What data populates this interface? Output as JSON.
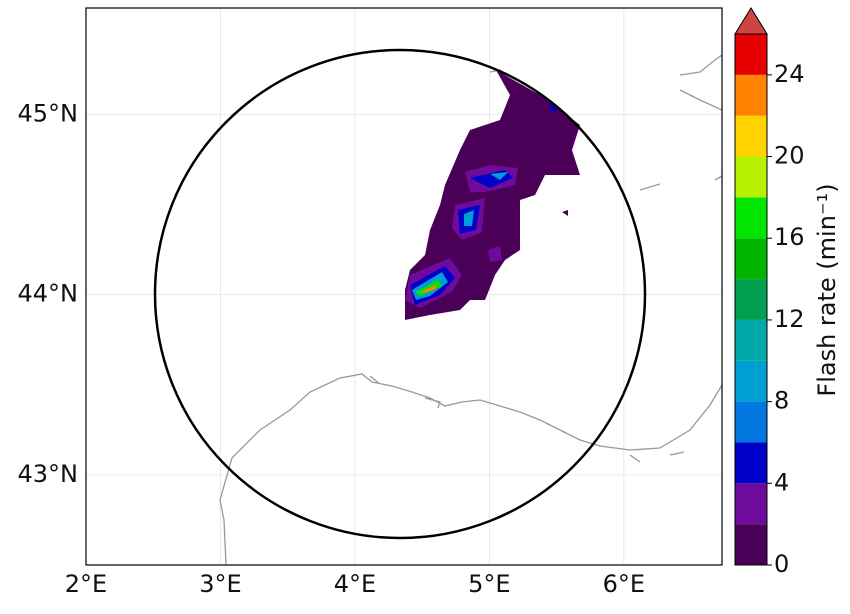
{
  "map": {
    "xlim": [
      2,
      6.73
    ],
    "ylim": [
      42.5,
      45.59
    ],
    "xticks": [
      {
        "value": 2,
        "label": "2°E"
      },
      {
        "value": 3,
        "label": "3°E"
      },
      {
        "value": 4,
        "label": "4°E"
      },
      {
        "value": 5,
        "label": "5°E"
      },
      {
        "value": 6,
        "label": "6°E"
      }
    ],
    "yticks": [
      {
        "value": 43,
        "label": "43°N"
      },
      {
        "value": 44,
        "label": "44°N"
      },
      {
        "value": 45,
        "label": "45°N"
      }
    ],
    "grid": true
  },
  "colorbar": {
    "label": "Flash rate (min⁻¹)",
    "levels": [
      0,
      2,
      4,
      6,
      8,
      10,
      12,
      14,
      16,
      18,
      20,
      22,
      24,
      26
    ],
    "colors": [
      "#4b0058",
      "#6e0a9c",
      "#0000c8",
      "#0078e0",
      "#009ed2",
      "#00a8a8",
      "#00a050",
      "#00b400",
      "#00e600",
      "#b4f000",
      "#ffd200",
      "#ff8200",
      "#e60000"
    ],
    "extend_color": "#cc4444",
    "ticks": [
      0,
      4,
      8,
      12,
      16,
      20,
      24
    ]
  }
}
